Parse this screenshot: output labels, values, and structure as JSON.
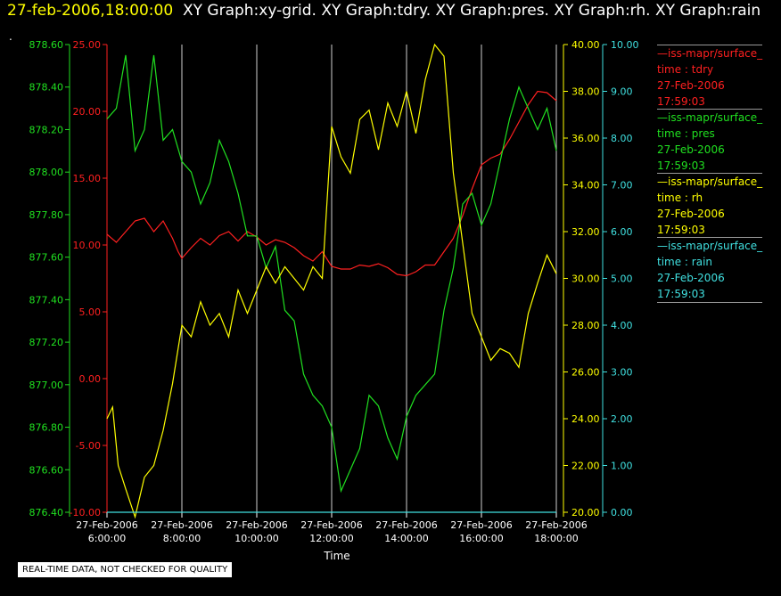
{
  "header": {
    "timestamp": "27-feb-2006,18:00:00",
    "graphs": "XY Graph:xy-grid.  XY Graph:tdry.  XY Graph:pres.  XY Graph:rh.  XY Graph:rain",
    "dot": "."
  },
  "notice": "REAL-TIME DATA, NOT CHECKED FOR QUALITY",
  "colors": {
    "tdry": "#ff2020",
    "pres": "#20e020",
    "rh": "#ffff00",
    "rain": "#40e0e0",
    "grid": "#d0d0d0"
  },
  "chart_data": {
    "type": "line",
    "xlabel": "Time",
    "xlim": [
      6,
      18
    ],
    "x_ticks": [
      {
        "value": 6,
        "label": [
          "27-Feb-2006",
          "6:00:00"
        ]
      },
      {
        "value": 8,
        "label": [
          "27-Feb-2006",
          "8:00:00"
        ]
      },
      {
        "value": 10,
        "label": [
          "27-Feb-2006",
          "10:00:00"
        ]
      },
      {
        "value": 12,
        "label": [
          "27-Feb-2006",
          "12:00:00"
        ]
      },
      {
        "value": 14,
        "label": [
          "27-Feb-2006",
          "14:00:00"
        ]
      },
      {
        "value": 16,
        "label": [
          "27-Feb-2006",
          "16:00:00"
        ]
      },
      {
        "value": 18,
        "label": [
          "27-Feb-2006",
          "18:00:00"
        ]
      }
    ],
    "grid": true,
    "axes": [
      {
        "id": "pres",
        "color": "#20e020",
        "ylim": [
          876.4,
          878.6
        ],
        "ticks": [
          "876.40",
          "876.60",
          "876.80",
          "877.00",
          "877.20",
          "877.40",
          "877.60",
          "877.80",
          "878.00",
          "878.20",
          "878.40",
          "878.60"
        ]
      },
      {
        "id": "tdry",
        "color": "#ff2020",
        "ylim": [
          -10,
          25
        ],
        "ticks": [
          "-10.00",
          "-5.00",
          "0.00",
          "5.00",
          "10.00",
          "15.00",
          "20.00",
          "25.00"
        ]
      },
      {
        "id": "rh",
        "color": "#ffff00",
        "ylim": [
          20,
          40
        ],
        "ticks": [
          "20.00",
          "22.00",
          "24.00",
          "26.00",
          "28.00",
          "30.00",
          "32.00",
          "34.00",
          "36.00",
          "38.00",
          "40.00"
        ]
      },
      {
        "id": "rain",
        "color": "#40e0e0",
        "ylim": [
          0,
          10
        ],
        "ticks": [
          "0.00",
          "1.00",
          "2.00",
          "3.00",
          "4.00",
          "5.00",
          "6.00",
          "7.00",
          "8.00",
          "9.00",
          "10.00"
        ]
      }
    ],
    "series": [
      {
        "axis": "tdry",
        "x": [
          6,
          6.25,
          6.5,
          6.75,
          7,
          7.25,
          7.5,
          7.75,
          7.9,
          8,
          8.25,
          8.5,
          8.75,
          9,
          9.25,
          9.5,
          9.75,
          10,
          10.25,
          10.5,
          10.75,
          11,
          11.25,
          11.5,
          11.75,
          12,
          12.25,
          12.5,
          12.75,
          13,
          13.25,
          13.5,
          13.75,
          14,
          14.25,
          14.5,
          14.75,
          15,
          15.25,
          15.5,
          15.75,
          16,
          16.25,
          16.5,
          16.75,
          17,
          17.25,
          17.5,
          17.75,
          18
        ],
        "y": [
          10.8,
          10.2,
          11,
          11.8,
          12,
          11,
          11.8,
          10.5,
          9.5,
          9,
          9.8,
          10.5,
          10,
          10.7,
          11,
          10.3,
          11,
          10.6,
          10,
          10.4,
          10.2,
          9.8,
          9.2,
          8.8,
          9.5,
          8.4,
          8.2,
          8.2,
          8.5,
          8.4,
          8.6,
          8.3,
          7.8,
          7.7,
          8,
          8.5,
          8.5,
          9.5,
          10.5,
          12.2,
          14.2,
          16,
          16.5,
          16.8,
          17.9,
          19.2,
          20.5,
          21.5,
          21.4,
          20.8
        ]
      },
      {
        "axis": "pres",
        "x": [
          6,
          6.25,
          6.5,
          6.75,
          7,
          7.25,
          7.5,
          7.75,
          8,
          8.25,
          8.5,
          8.75,
          9,
          9.25,
          9.5,
          9.75,
          10,
          10.25,
          10.5,
          10.75,
          11,
          11.25,
          11.5,
          11.75,
          12,
          12.25,
          12.5,
          12.75,
          13,
          13.25,
          13.5,
          13.75,
          14,
          14.25,
          14.5,
          14.75,
          15,
          15.25,
          15.5,
          15.75,
          16,
          16.25,
          16.5,
          16.75,
          17,
          17.25,
          17.5,
          17.75,
          18
        ],
        "y": [
          878.25,
          878.3,
          878.55,
          878.1,
          878.2,
          878.55,
          878.15,
          878.2,
          878.05,
          878,
          877.85,
          877.95,
          878.15,
          878.05,
          877.9,
          877.7,
          877.7,
          877.55,
          877.65,
          877.35,
          877.3,
          877.05,
          876.95,
          876.9,
          876.8,
          876.5,
          876.6,
          876.7,
          876.95,
          876.9,
          876.75,
          876.65,
          876.85,
          876.95,
          877,
          877.05,
          877.35,
          877.55,
          877.85,
          877.9,
          877.75,
          877.85,
          878.05,
          878.25,
          878.4,
          878.3,
          878.2,
          878.3,
          878.1
        ]
      },
      {
        "axis": "rh",
        "x": [
          6,
          6.15,
          6.3,
          6.5,
          6.75,
          7,
          7.25,
          7.5,
          7.75,
          8,
          8.25,
          8.5,
          8.75,
          9,
          9.25,
          9.5,
          9.75,
          10,
          10.25,
          10.5,
          10.75,
          11,
          11.25,
          11.5,
          11.75,
          12,
          12.25,
          12.5,
          12.75,
          13,
          13.25,
          13.5,
          13.75,
          14,
          14.25,
          14.5,
          14.75,
          15,
          15.25,
          15.5,
          15.75,
          16,
          16.25,
          16.5,
          16.75,
          17,
          17.25,
          17.5,
          17.75,
          18
        ],
        "y": [
          24,
          24.5,
          22,
          21,
          19.8,
          21.5,
          22,
          23.5,
          25.5,
          28,
          27.5,
          29,
          28,
          28.5,
          27.5,
          29.5,
          28.5,
          29.5,
          30.5,
          29.8,
          30.5,
          30,
          29.5,
          30.5,
          30,
          36.5,
          35.2,
          34.5,
          36.8,
          37.2,
          35.5,
          37.5,
          36.5,
          38,
          36.2,
          38.5,
          40,
          39.5,
          34.5,
          31.5,
          28.5,
          27.5,
          26.5,
          27,
          26.8,
          26.2,
          28.5,
          29.8,
          31,
          30.2
        ]
      },
      {
        "axis": "rain",
        "x": [
          6,
          18
        ],
        "y": [
          0,
          0
        ]
      }
    ],
    "legend": {
      "placement": "right",
      "entries": [
        {
          "id": "tdry",
          "name": "iss-mapr/surface_",
          "field": "time : tdry",
          "date": "27-Feb-2006",
          "time": "17:59:03"
        },
        {
          "id": "pres",
          "name": "iss-mapr/surface_",
          "field": "time : pres",
          "date": "27-Feb-2006",
          "time": "17:59:03"
        },
        {
          "id": "rh",
          "name": "iss-mapr/surface_",
          "field": "time : rh",
          "date": "27-Feb-2006",
          "time": "17:59:03"
        },
        {
          "id": "rain",
          "name": "iss-mapr/surface_",
          "field": "time : rain",
          "date": "27-Feb-2006",
          "time": "17:59:03"
        }
      ]
    }
  }
}
